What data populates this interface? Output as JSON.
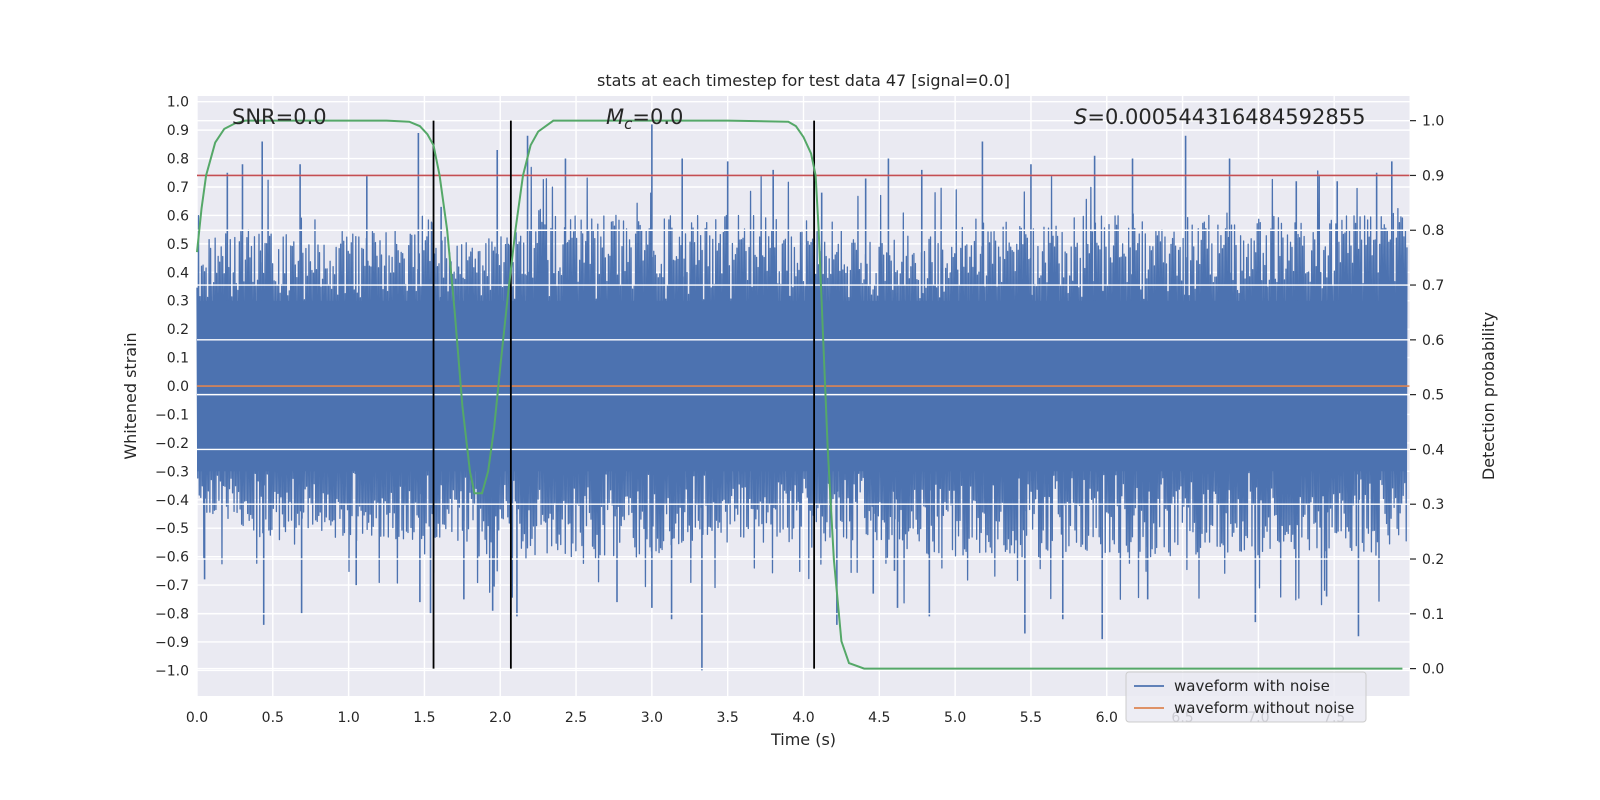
{
  "chart_data": {
    "type": "line",
    "title": "stats at each timestep for test data 47 [signal=0.0]",
    "xlabel": "Time (s)",
    "ylabel": "Whitened strain",
    "y2label": "Detection probability",
    "xlim": [
      0.0,
      8.0
    ],
    "ylim": [
      -1.09,
      1.02
    ],
    "y2lim": [
      -0.05,
      1.045
    ],
    "xticks": [
      "0.0",
      "0.5",
      "1.0",
      "1.5",
      "2.0",
      "2.5",
      "3.0",
      "3.5",
      "4.0",
      "4.5",
      "5.0",
      "5.5",
      "6.0",
      "6.5",
      "7.0",
      "7.5"
    ],
    "yticks": [
      "1.0",
      "0.9",
      "0.8",
      "0.7",
      "0.6",
      "0.5",
      "0.4",
      "0.3",
      "0.2",
      "0.1",
      "0.0",
      "−0.1",
      "−0.2",
      "−0.3",
      "−0.4",
      "−0.5",
      "−0.6",
      "−0.7",
      "−0.8",
      "−0.9",
      "−1.0"
    ],
    "y2ticks": [
      "1.0",
      "0.9",
      "0.8",
      "0.7",
      "0.6",
      "0.5",
      "0.4",
      "0.3",
      "0.2",
      "0.1",
      "0.0"
    ],
    "grid": true,
    "legend_position": "lower-right",
    "annotations": {
      "snr": "SNR=0.0",
      "mc_symbol": "M",
      "mc_sub": "c",
      "mc_value": "=0.0",
      "s_symbol": "S",
      "s_value": "=0.000544316484592855"
    },
    "threshold": {
      "value": 0.9,
      "axis": "y2",
      "color": "#c44e52"
    },
    "vertical_markers": [
      1.56,
      2.07,
      4.07
    ],
    "noise_envelope": {
      "t": [
        0.0,
        0.25,
        0.5,
        0.75,
        1.0,
        1.25,
        1.5,
        1.75,
        2.0,
        2.25,
        2.5,
        2.75,
        3.0,
        3.25,
        3.5,
        3.75,
        4.0,
        4.25,
        4.5,
        4.75,
        5.0,
        5.25,
        5.5,
        5.75,
        6.0,
        6.25,
        6.5,
        6.75,
        7.0,
        7.25,
        7.5,
        7.75,
        8.0
      ],
      "upper_typical": [
        0.5,
        0.55,
        0.55,
        0.5,
        0.55,
        0.55,
        0.6,
        0.5,
        0.55,
        0.6,
        0.6,
        0.6,
        0.6,
        0.6,
        0.6,
        0.6,
        0.55,
        0.55,
        0.5,
        0.55,
        0.55,
        0.6,
        0.55,
        0.6,
        0.6,
        0.6,
        0.6,
        0.6,
        0.6,
        0.6,
        0.6,
        0.6,
        0.6
      ],
      "lower_typical": [
        -0.45,
        -0.5,
        -0.55,
        -0.5,
        -0.55,
        -0.55,
        -0.55,
        -0.55,
        -0.55,
        -0.6,
        -0.6,
        -0.6,
        -0.6,
        -0.55,
        -0.55,
        -0.55,
        -0.55,
        -0.55,
        -0.55,
        -0.6,
        -0.6,
        -0.6,
        -0.6,
        -0.6,
        -0.6,
        -0.6,
        -0.6,
        -0.6,
        -0.6,
        -0.6,
        -0.6,
        -0.6,
        -0.55
      ],
      "peaks_max": [
        [
          0.2,
          0.75
        ],
        [
          0.3,
          0.78
        ],
        [
          0.43,
          0.86
        ],
        [
          0.68,
          0.78
        ],
        [
          1.12,
          0.74
        ],
        [
          1.46,
          0.89
        ],
        [
          1.61,
          0.63
        ],
        [
          1.98,
          0.83
        ],
        [
          2.18,
          0.88
        ],
        [
          2.43,
          0.8
        ],
        [
          3.0,
          0.92
        ],
        [
          3.2,
          0.8
        ],
        [
          3.5,
          0.79
        ],
        [
          3.8,
          0.76
        ],
        [
          4.12,
          0.68
        ],
        [
          4.41,
          0.73
        ],
        [
          4.56,
          0.8
        ],
        [
          4.78,
          0.76
        ],
        [
          5.18,
          0.86
        ],
        [
          5.5,
          0.78
        ],
        [
          5.92,
          0.81
        ],
        [
          6.17,
          0.8
        ],
        [
          6.52,
          0.88
        ],
        [
          6.81,
          0.8
        ],
        [
          7.25,
          0.72
        ],
        [
          7.52,
          0.72
        ],
        [
          7.78,
          0.75
        ],
        [
          7.88,
          0.79
        ]
      ],
      "peaks_min": [
        [
          0.05,
          -0.68
        ],
        [
          0.44,
          -0.84
        ],
        [
          0.69,
          -0.8
        ],
        [
          1.05,
          -0.7
        ],
        [
          1.47,
          -0.76
        ],
        [
          1.54,
          -0.8
        ],
        [
          1.76,
          -0.75
        ],
        [
          1.95,
          -0.79
        ],
        [
          2.11,
          -0.81
        ],
        [
          2.77,
          -0.76
        ],
        [
          3.0,
          -0.78
        ],
        [
          3.13,
          -0.82
        ],
        [
          3.33,
          -1.0
        ],
        [
          4.22,
          -0.84
        ],
        [
          4.46,
          -0.73
        ],
        [
          4.6,
          -0.65
        ],
        [
          4.62,
          -0.78
        ],
        [
          4.83,
          -0.81
        ],
        [
          5.46,
          -0.87
        ],
        [
          5.71,
          -0.82
        ],
        [
          5.97,
          -0.89
        ],
        [
          6.27,
          -0.75
        ],
        [
          6.98,
          -0.83
        ],
        [
          7.45,
          -0.74
        ],
        [
          7.66,
          -0.88
        ]
      ]
    },
    "series": [
      {
        "name": "waveform with noise",
        "color": "#4c72b0",
        "axis": "y"
      },
      {
        "name": "waveform without noise",
        "color": "#dd8452",
        "axis": "y",
        "x": [
          0.0,
          8.0
        ],
        "y": [
          0.0,
          0.0
        ]
      },
      {
        "color": "#55a868",
        "axis": "y2",
        "x": [
          0.0,
          0.03,
          0.06,
          0.12,
          0.18,
          0.25,
          0.32,
          0.4,
          0.5,
          0.75,
          1.0,
          1.25,
          1.4,
          1.47,
          1.52,
          1.56,
          1.6,
          1.65,
          1.7,
          1.75,
          1.8,
          1.83,
          1.88,
          1.92,
          1.96,
          2.0,
          2.05,
          2.1,
          2.15,
          2.2,
          2.25,
          2.35,
          2.5,
          3.0,
          3.5,
          3.9,
          3.95,
          4.0,
          4.05,
          4.08,
          4.1,
          4.13,
          4.16,
          4.2,
          4.25,
          4.3,
          4.4,
          4.6,
          5.0,
          6.0,
          7.0,
          7.8,
          7.95
        ],
        "y": [
          0.76,
          0.84,
          0.9,
          0.96,
          0.985,
          0.995,
          1.0,
          1.0,
          1.0,
          1.0,
          1.0,
          1.0,
          0.998,
          0.99,
          0.975,
          0.955,
          0.9,
          0.8,
          0.65,
          0.48,
          0.36,
          0.32,
          0.32,
          0.36,
          0.44,
          0.55,
          0.68,
          0.8,
          0.9,
          0.955,
          0.98,
          1.0,
          1.0,
          1.0,
          1.0,
          0.998,
          0.99,
          0.97,
          0.94,
          0.9,
          0.8,
          0.6,
          0.4,
          0.2,
          0.05,
          0.01,
          0.0,
          0.0,
          0.0,
          0.0,
          0.0,
          0.0,
          0.0
        ]
      }
    ]
  }
}
